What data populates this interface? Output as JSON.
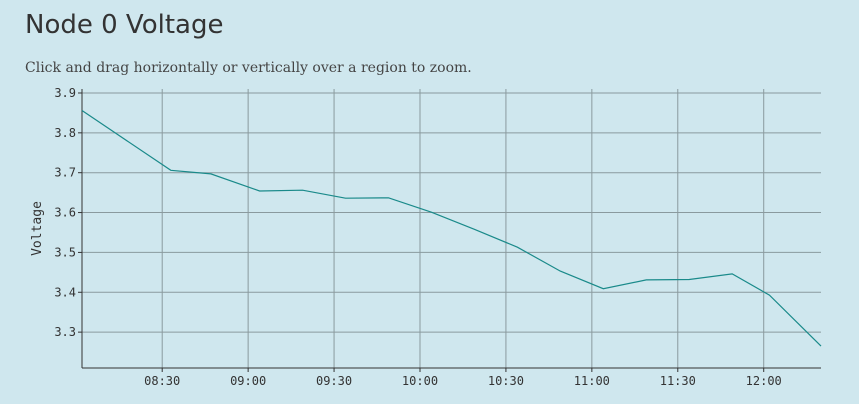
{
  "header": {
    "title": "Node 0 Voltage",
    "instructions": "Click and drag horizontally or vertically over a region to zoom."
  },
  "chart_data": {
    "type": "line",
    "title": "Node 0 Voltage",
    "xlabel": "",
    "ylabel": "Voltage",
    "x_start": "08:02",
    "x_end": "12:20",
    "xlim": [
      "08:02",
      "12:20"
    ],
    "ylim": [
      3.21,
      3.91
    ],
    "x_ticks": [
      "08:30",
      "09:00",
      "09:30",
      "10:00",
      "10:30",
      "11:00",
      "11:30",
      "12:00"
    ],
    "y_ticks": [
      3.3,
      3.4,
      3.5,
      3.6,
      3.7,
      3.8,
      3.9
    ],
    "grid": true,
    "line_color": "#1a8a8a",
    "series": [
      {
        "x": [
          "08:02",
          "08:33",
          "08:47",
          "09:04",
          "09:19",
          "09:34",
          "09:49",
          "10:04",
          "10:19",
          "10:34",
          "10:49",
          "11:04",
          "11:19",
          "11:34",
          "11:49",
          "12:02",
          "12:20"
        ],
        "values": [
          3.856,
          3.706,
          3.697,
          3.654,
          3.656,
          3.636,
          3.637,
          3.601,
          3.558,
          3.513,
          3.453,
          3.409,
          3.431,
          3.432,
          3.446,
          3.393,
          3.265
        ]
      }
    ]
  }
}
